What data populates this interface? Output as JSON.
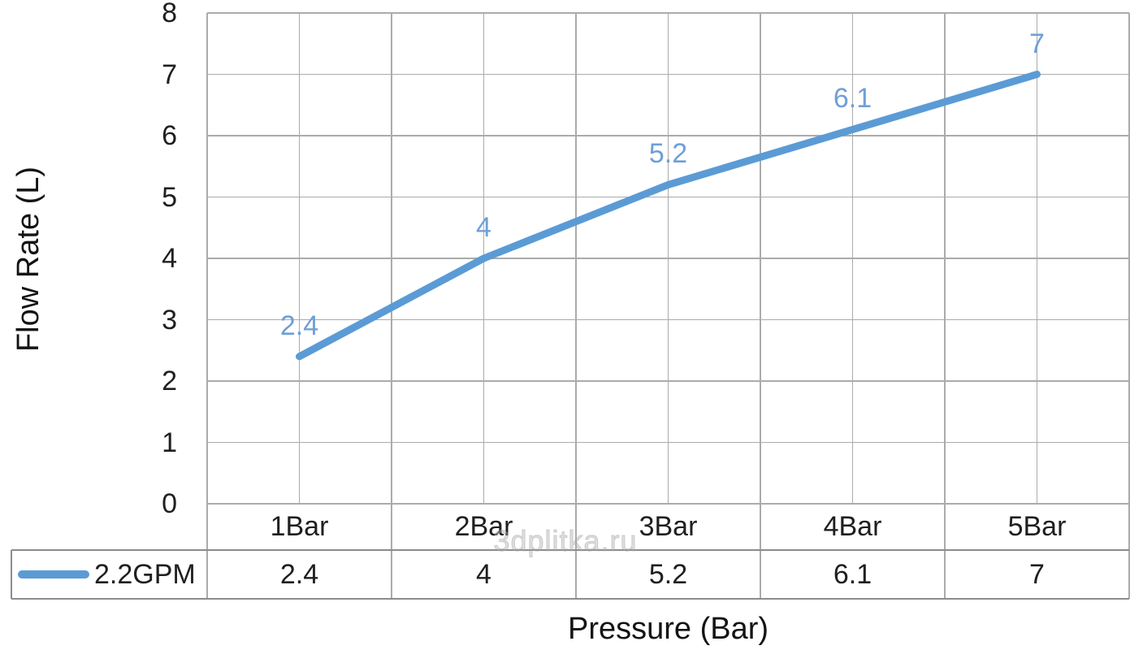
{
  "watermark": "3dplitka.ru",
  "chart_data": {
    "type": "line",
    "title": "",
    "xlabel": "Pressure (Bar)",
    "ylabel": "Flow Rate (L)",
    "categories": [
      "1Bar",
      "2Bar",
      "3Bar",
      "4Bar",
      "5Bar"
    ],
    "series": [
      {
        "name": "2.2GPM",
        "color": "#5B9BD5",
        "values": [
          2.4,
          4,
          5.2,
          6.1,
          7
        ]
      }
    ],
    "data_labels": [
      "2.4",
      "4",
      "5.2",
      "6.1",
      "7"
    ],
    "ylim": [
      0,
      8
    ],
    "y_tick_step": 1,
    "y_tick_labels": [
      "0",
      "1",
      "2",
      "3",
      "4",
      "5",
      "6",
      "7",
      "8"
    ],
    "grid": true,
    "x_half_category_gridlines": true,
    "legend_position": "bottom-data-table",
    "data_table": {
      "rows": [
        {
          "legend": "2.2GPM",
          "values": [
            "2.4",
            "4",
            "5.2",
            "6.1",
            "7"
          ]
        }
      ]
    }
  },
  "colors": {
    "series_line": "#5B9BD5",
    "data_label_text": "#6F9FD8",
    "gridline": "#ABABAB",
    "table_border": "#8C8C8C",
    "axis_text": "#1F1F1F",
    "watermark_text": "#C4C4C4"
  }
}
